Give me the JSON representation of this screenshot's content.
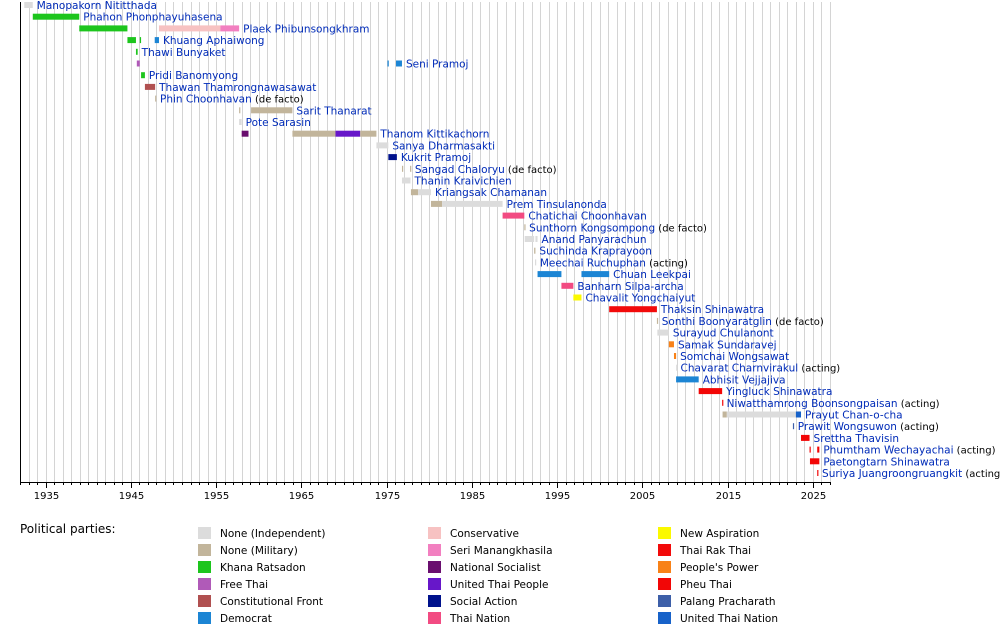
{
  "chart_data": {
    "type": "timeline",
    "x_range": [
      1932,
      2027
    ],
    "x_ticks": [
      1935,
      1945,
      1955,
      1965,
      1975,
      1985,
      1995,
      2005,
      2015,
      2025
    ],
    "grid": true,
    "legend_title": "Political parties:",
    "legend_position": "bottom",
    "parties": [
      {
        "key": "none_ind",
        "name": "None (Independent)",
        "color": "#dcdcdc"
      },
      {
        "key": "none_mil",
        "name": "None (Military)",
        "color": "#c2b59b"
      },
      {
        "key": "khana",
        "name": "Khana Ratsadon",
        "color": "#1dc51d"
      },
      {
        "key": "freethai",
        "name": "Free Thai",
        "color": "#b05ab8"
      },
      {
        "key": "constfront",
        "name": "Constitutional Front",
        "color": "#b05050"
      },
      {
        "key": "democrat",
        "name": "Democrat",
        "color": "#1c85d4"
      },
      {
        "key": "conservative",
        "name": "Conservative",
        "color": "#f7c2c2"
      },
      {
        "key": "seri",
        "name": "Seri Manangkhasila",
        "color": "#f27fc0"
      },
      {
        "key": "natsoc",
        "name": "National Socialist",
        "color": "#6a0f6f"
      },
      {
        "key": "utp",
        "name": "United Thai People",
        "color": "#6717c9"
      },
      {
        "key": "socialaction",
        "name": "Social Action",
        "color": "#00128c"
      },
      {
        "key": "thaination",
        "name": "Thai Nation",
        "color": "#f24b82"
      },
      {
        "key": "newasp",
        "name": "New Aspiration",
        "color": "#fbf900"
      },
      {
        "key": "trt",
        "name": "Thai Rak Thai",
        "color": "#f20a0a"
      },
      {
        "key": "ppp",
        "name": "People's Power",
        "color": "#f88218"
      },
      {
        "key": "pheuthai",
        "name": "Pheu Thai",
        "color": "#f20606"
      },
      {
        "key": "palang",
        "name": "Palang Pracharath",
        "color": "#3d5fa8"
      },
      {
        "key": "utn",
        "name": "United Thai Nation",
        "color": "#1762c9"
      }
    ],
    "prime_ministers": [
      {
        "name": "Manopakorn Nititthada",
        "note": "",
        "terms": [
          {
            "start": 1932.5,
            "end": 1933.5,
            "party": "none_ind"
          }
        ]
      },
      {
        "name": "Phahon Phonphayuhasena",
        "note": "",
        "terms": [
          {
            "start": 1933.5,
            "end": 1938.95,
            "party": "khana"
          }
        ]
      },
      {
        "name": "Plaek Phibunsongkhram",
        "note": "",
        "terms": [
          {
            "start": 1938.95,
            "end": 1944.6,
            "party": "khana"
          },
          {
            "start": 1948.3,
            "end": 1955.5,
            "party": "conservative"
          },
          {
            "start": 1955.5,
            "end": 1957.7,
            "party": "seri"
          }
        ]
      },
      {
        "name": "Khuang Aphaiwong",
        "note": "",
        "terms": [
          {
            "start": 1944.6,
            "end": 1945.6,
            "party": "khana"
          },
          {
            "start": 1946.05,
            "end": 1946.2,
            "party": "khana"
          },
          {
            "start": 1947.8,
            "end": 1948.3,
            "party": "democrat"
          }
        ]
      },
      {
        "name": "Thawi Bunyaket",
        "note": "",
        "terms": [
          {
            "start": 1945.6,
            "end": 1945.8,
            "party": "khana"
          }
        ]
      },
      {
        "name": "Seni Pramoj",
        "note": "",
        "terms": [
          {
            "start": 1945.7,
            "end": 1946.05,
            "party": "freethai"
          },
          {
            "start": 1975.1,
            "end": 1975.25,
            "party": "democrat"
          },
          {
            "start": 1976.1,
            "end": 1976.8,
            "party": "democrat"
          }
        ]
      },
      {
        "name": "Pridi Banomyong",
        "note": "",
        "terms": [
          {
            "start": 1946.2,
            "end": 1946.65,
            "party": "khana"
          }
        ]
      },
      {
        "name": "Thawan Thamrongnawasawat",
        "note": "",
        "terms": [
          {
            "start": 1946.65,
            "end": 1947.85,
            "party": "constfront"
          }
        ]
      },
      {
        "name": "Phin Choonhavan",
        "note": "(de facto)",
        "terms": [
          {
            "start": 1947.85,
            "end": 1947.95,
            "party": "none_mil"
          }
        ]
      },
      {
        "name": "Sarit Thanarat",
        "note": "",
        "terms": [
          {
            "start": 1957.7,
            "end": 1957.8,
            "party": "none_mil"
          },
          {
            "start": 1959.1,
            "end": 1963.95,
            "party": "none_mil"
          }
        ]
      },
      {
        "name": "Pote Sarasin",
        "note": "",
        "terms": [
          {
            "start": 1957.7,
            "end": 1958.0,
            "party": "none_ind"
          }
        ]
      },
      {
        "name": "Thanom Kittikachorn",
        "note": "",
        "terms": [
          {
            "start": 1958.0,
            "end": 1958.8,
            "party": "natsoc"
          },
          {
            "start": 1963.95,
            "end": 1969.0,
            "party": "none_mil"
          },
          {
            "start": 1969.0,
            "end": 1971.9,
            "party": "utp"
          },
          {
            "start": 1971.9,
            "end": 1973.8,
            "party": "none_mil"
          }
        ]
      },
      {
        "name": "Sanya Dharmasakti",
        "note": "",
        "terms": [
          {
            "start": 1973.8,
            "end": 1975.2,
            "party": "none_ind"
          }
        ]
      },
      {
        "name": "Kukrit Pramoj",
        "note": "",
        "terms": [
          {
            "start": 1975.2,
            "end": 1976.2,
            "party": "socialaction"
          }
        ]
      },
      {
        "name": "Sangad Chaloryu",
        "note": "(de facto)",
        "terms": [
          {
            "start": 1976.8,
            "end": 1976.85,
            "party": "none_mil"
          },
          {
            "start": 1977.75,
            "end": 1977.85,
            "party": "none_mil"
          }
        ]
      },
      {
        "name": "Thanin Kraivichien",
        "note": "",
        "terms": [
          {
            "start": 1976.8,
            "end": 1977.8,
            "party": "none_ind"
          }
        ]
      },
      {
        "name": "Kriangsak Chamanan",
        "note": "",
        "terms": [
          {
            "start": 1977.85,
            "end": 1978.7,
            "party": "none_mil"
          },
          {
            "start": 1978.7,
            "end": 1980.2,
            "party": "none_ind"
          }
        ]
      },
      {
        "name": "Prem Tinsulanonda",
        "note": "",
        "terms": [
          {
            "start": 1980.2,
            "end": 1981.5,
            "party": "none_mil"
          },
          {
            "start": 1981.5,
            "end": 1988.6,
            "party": "none_ind"
          }
        ]
      },
      {
        "name": "Chatichai Choonhavan",
        "note": "",
        "terms": [
          {
            "start": 1988.6,
            "end": 1991.15,
            "party": "thaination"
          }
        ]
      },
      {
        "name": "Sunthorn Kongsompong",
        "note": "(de facto)",
        "terms": [
          {
            "start": 1991.15,
            "end": 1991.25,
            "party": "none_mil"
          }
        ]
      },
      {
        "name": "Anand Panyarachun",
        "note": "",
        "terms": [
          {
            "start": 1991.2,
            "end": 1992.3,
            "party": "none_ind"
          },
          {
            "start": 1992.45,
            "end": 1992.7,
            "party": "none_ind"
          }
        ]
      },
      {
        "name": "Suchinda Kraprayoon",
        "note": "",
        "terms": [
          {
            "start": 1992.3,
            "end": 1992.45,
            "party": "none_mil"
          }
        ]
      },
      {
        "name": "Meechai Ruchuphan",
        "note": "(acting)",
        "terms": [
          {
            "start": 1992.4,
            "end": 1992.5,
            "party": "none_ind"
          }
        ]
      },
      {
        "name": "Chuan Leekpai",
        "note": "",
        "terms": [
          {
            "start": 1992.7,
            "end": 1995.5,
            "party": "democrat"
          },
          {
            "start": 1997.85,
            "end": 2001.1,
            "party": "democrat"
          }
        ]
      },
      {
        "name": "Banharn Silpa-archa",
        "note": "",
        "terms": [
          {
            "start": 1995.5,
            "end": 1996.9,
            "party": "thaination"
          }
        ]
      },
      {
        "name": "Chavalit Yongchaiyut",
        "note": "",
        "terms": [
          {
            "start": 1996.9,
            "end": 1997.85,
            "party": "newasp"
          }
        ]
      },
      {
        "name": "Thaksin Shinawatra",
        "note": "",
        "terms": [
          {
            "start": 2001.1,
            "end": 2006.7,
            "party": "trt"
          }
        ]
      },
      {
        "name": "Sonthi Boonyaratglin",
        "note": "(de facto)",
        "terms": [
          {
            "start": 2006.7,
            "end": 2006.8,
            "party": "none_mil"
          }
        ]
      },
      {
        "name": "Surayud Chulanont",
        "note": "",
        "terms": [
          {
            "start": 2006.75,
            "end": 2008.1,
            "party": "none_ind"
          }
        ]
      },
      {
        "name": "Samak Sundaravej",
        "note": "",
        "terms": [
          {
            "start": 2008.1,
            "end": 2008.7,
            "party": "ppp"
          }
        ]
      },
      {
        "name": "Somchai Wongsawat",
        "note": "",
        "terms": [
          {
            "start": 2008.7,
            "end": 2008.95,
            "party": "ppp"
          }
        ]
      },
      {
        "name": "Chavarat Charnvirakul",
        "note": "(acting)",
        "terms": [
          {
            "start": 2008.95,
            "end": 2009.0,
            "party": "none_ind"
          }
        ]
      },
      {
        "name": "Abhisit Vejjajiva",
        "note": "",
        "terms": [
          {
            "start": 2008.95,
            "end": 2011.6,
            "party": "democrat"
          }
        ]
      },
      {
        "name": "Yingluck Shinawatra",
        "note": "",
        "terms": [
          {
            "start": 2011.6,
            "end": 2014.35,
            "party": "pheuthai"
          }
        ]
      },
      {
        "name": "Niwatthamrong Boonsongpaisan",
        "note": "(acting)",
        "terms": [
          {
            "start": 2014.35,
            "end": 2014.4,
            "party": "pheuthai"
          }
        ]
      },
      {
        "name": "Prayut Chan-o-cha",
        "note": "",
        "terms": [
          {
            "start": 2014.4,
            "end": 2014.9,
            "party": "none_mil"
          },
          {
            "start": 2014.9,
            "end": 2023.0,
            "party": "none_ind"
          },
          {
            "start": 2023.0,
            "end": 2023.6,
            "party": "utn"
          }
        ]
      },
      {
        "name": "Prawit Wongsuwon",
        "note": "(acting)",
        "terms": [
          {
            "start": 2022.65,
            "end": 2022.75,
            "party": "palang"
          }
        ]
      },
      {
        "name": "Srettha Thavisin",
        "note": "",
        "terms": [
          {
            "start": 2023.6,
            "end": 2024.6,
            "party": "pheuthai"
          }
        ]
      },
      {
        "name": "Phumtham Wechayachai",
        "note": "(acting)",
        "terms": [
          {
            "start": 2024.6,
            "end": 2024.7,
            "party": "pheuthai"
          },
          {
            "start": 2025.5,
            "end": 2025.75,
            "party": "pheuthai"
          }
        ]
      },
      {
        "name": "Paetongtarn Shinawatra",
        "note": "",
        "terms": [
          {
            "start": 2024.65,
            "end": 2025.75,
            "party": "pheuthai"
          }
        ]
      },
      {
        "name": "Suriya Juangroongruangkit",
        "note": "(acting)",
        "terms": [
          {
            "start": 2025.5,
            "end": 2025.6,
            "party": "pheuthai"
          }
        ]
      }
    ]
  }
}
